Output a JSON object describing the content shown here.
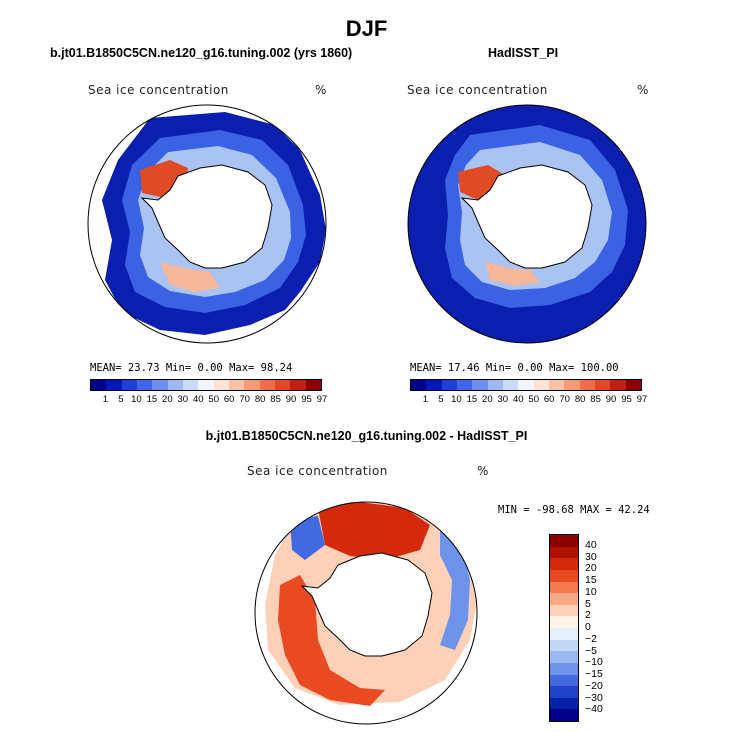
{
  "title": "DJF",
  "panels": [
    {
      "title": "b.jt01.B1850C5CN.ne120_g16.tuning.002 (yrs 1860)",
      "field_label": "Sea ice concentration",
      "units": "%",
      "stats": "MEAN=  23.73  Min=   0.00  Max=  98.24"
    },
    {
      "title": "HadISST_PI",
      "field_label": "Sea ice concentration",
      "units": "%",
      "stats": "MEAN=  17.46  Min=   0.00  Max= 100.00"
    }
  ],
  "colorbar": {
    "colors": [
      "#00008b",
      "#0018b8",
      "#1e3fd8",
      "#3f66e8",
      "#6f8ff0",
      "#9fb7f5",
      "#c9dafa",
      "#f2f5fb",
      "#fde3d2",
      "#f9c2a5",
      "#f59b74",
      "#ef6e47",
      "#e24626",
      "#c12010",
      "#8b0000"
    ],
    "ticks": [
      "1",
      "5",
      "10",
      "15",
      "20",
      "30",
      "40",
      "50",
      "60",
      "70",
      "80",
      "85",
      "90",
      "95",
      "97"
    ]
  },
  "diff": {
    "title": "b.jt01.B1850C5CN.ne120_g16.tuning.002 - HadISST_PI",
    "field_label": "Sea ice concentration",
    "units": "%",
    "stats": "MIN = -98.68  MAX =  42.24",
    "colors": [
      "#8b0000",
      "#b01000",
      "#d42a0c",
      "#ea4a22",
      "#f57a4e",
      "#f9a986",
      "#fdd0b8",
      "#fff3ea",
      "#e6f0fb",
      "#c3d8f6",
      "#9ab8f0",
      "#6e93ea",
      "#4369de",
      "#2042c8",
      "#0620a8",
      "#00008b"
    ],
    "ticks": [
      "40",
      "30",
      "20",
      "15",
      "10",
      "5",
      "2",
      "0",
      "−2",
      "−5",
      "−10",
      "−15",
      "−20",
      "−30",
      "−40"
    ]
  },
  "map_colors": {
    "ocean_white": "#ffffff",
    "land": "#ffffff",
    "deep_blue": "#0a1fb0",
    "mid_blue": "#3a62e2",
    "light_blue": "#a9c3f3",
    "red": "#e04a24",
    "light_red": "#f6b79a"
  }
}
